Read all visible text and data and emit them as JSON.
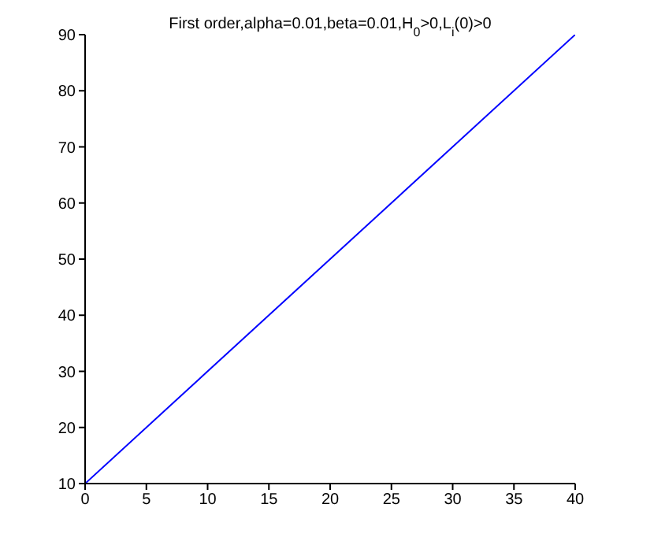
{
  "chart_data": {
    "type": "line",
    "title": "First order,alpha=0.01,beta=0.01,H$_{0}$>0,L$_{i}$(0)>0",
    "x": [
      0,
      40
    ],
    "series": [
      {
        "color": "#0000ff",
        "values": [
          10,
          90
        ]
      }
    ],
    "xlim": [
      0,
      40
    ],
    "xticks": [
      0,
      5,
      10,
      15,
      20,
      25,
      30,
      35,
      40
    ],
    "ylim": [
      10,
      90
    ],
    "yticks": [
      10,
      20,
      30,
      40,
      50,
      60,
      70,
      80,
      90
    ],
    "grid": false,
    "legend": false,
    "marker": "none",
    "line_style": "solid"
  }
}
